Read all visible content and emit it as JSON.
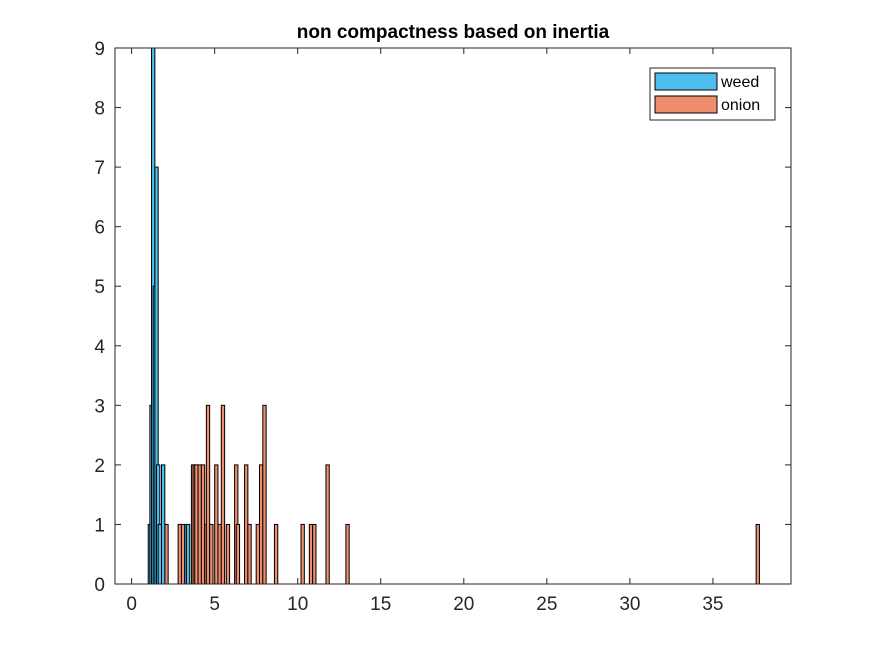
{
  "chart_data": {
    "type": "bar",
    "title": "non compactness based on inertia",
    "xlabel": "",
    "ylabel": "",
    "xlim": [
      -1,
      39.7
    ],
    "ylim": [
      0,
      9
    ],
    "xticks": [
      0,
      5,
      10,
      15,
      20,
      25,
      30,
      35
    ],
    "yticks": [
      0,
      1,
      2,
      3,
      4,
      5,
      6,
      7,
      8,
      9
    ],
    "grid": false,
    "legend_position": "top-right",
    "bin_width": 0.2,
    "series": [
      {
        "name": "weed",
        "color": "#4DBEEE",
        "bins": [
          {
            "x": 1.1,
            "y": 1
          },
          {
            "x": 1.2,
            "y": 3
          },
          {
            "x": 1.3,
            "y": 9
          },
          {
            "x": 1.4,
            "y": 5
          },
          {
            "x": 1.5,
            "y": 7
          },
          {
            "x": 1.6,
            "y": 2
          },
          {
            "x": 1.7,
            "y": 1
          },
          {
            "x": 1.9,
            "y": 2
          },
          {
            "x": 3.3,
            "y": 1
          },
          {
            "x": 3.4,
            "y": 1
          }
        ]
      },
      {
        "name": "onion",
        "color": "#EE8E6E",
        "bins": [
          {
            "x": 2.1,
            "y": 1
          },
          {
            "x": 2.9,
            "y": 1
          },
          {
            "x": 3.1,
            "y": 1
          },
          {
            "x": 3.7,
            "y": 2
          },
          {
            "x": 3.8,
            "y": 2
          },
          {
            "x": 3.9,
            "y": 2
          },
          {
            "x": 4.1,
            "y": 2
          },
          {
            "x": 4.3,
            "y": 2
          },
          {
            "x": 4.5,
            "y": 1
          },
          {
            "x": 4.6,
            "y": 3
          },
          {
            "x": 4.8,
            "y": 1
          },
          {
            "x": 5.1,
            "y": 2
          },
          {
            "x": 5.3,
            "y": 1
          },
          {
            "x": 5.5,
            "y": 3
          },
          {
            "x": 5.8,
            "y": 1
          },
          {
            "x": 6.3,
            "y": 2
          },
          {
            "x": 6.4,
            "y": 1
          },
          {
            "x": 6.9,
            "y": 2
          },
          {
            "x": 7.1,
            "y": 1
          },
          {
            "x": 7.6,
            "y": 1
          },
          {
            "x": 7.8,
            "y": 2
          },
          {
            "x": 8.0,
            "y": 3
          },
          {
            "x": 8.7,
            "y": 1
          },
          {
            "x": 10.3,
            "y": 1
          },
          {
            "x": 10.8,
            "y": 1
          },
          {
            "x": 11.0,
            "y": 1
          },
          {
            "x": 11.8,
            "y": 2
          },
          {
            "x": 13.0,
            "y": 1
          },
          {
            "x": 37.7,
            "y": 1
          }
        ]
      }
    ]
  }
}
